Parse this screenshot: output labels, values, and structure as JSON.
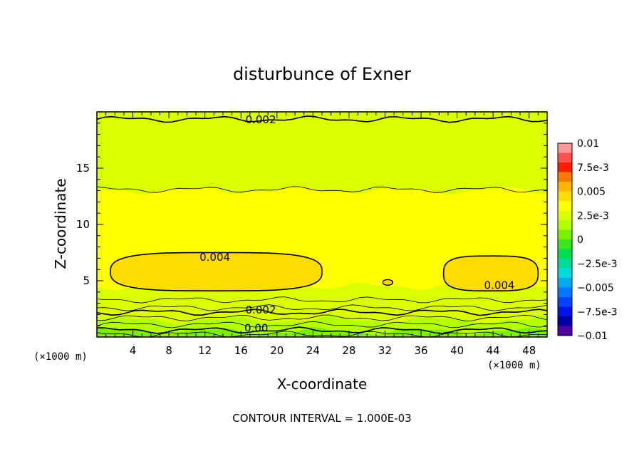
{
  "chart_data": {
    "type": "heatmap",
    "title": "disturbunce of Exner",
    "xlabel": "X-coordinate",
    "ylabel": "Z-coordinate",
    "x_unit_left": "(×1000 m)",
    "x_unit_right": "(×1000 m)",
    "footer": "CONTOUR INTERVAL = 1.000E-03",
    "xlim": [
      0,
      50
    ],
    "ylim": [
      0,
      20
    ],
    "x_ticks": [
      "4",
      "8",
      "12",
      "16",
      "20",
      "24",
      "28",
      "32",
      "36",
      "40",
      "44",
      "48"
    ],
    "y_ticks": [
      "5",
      "10",
      "15"
    ],
    "contour_interval": 0.001,
    "contour_labels": [
      {
        "text": "0.002",
        "x": 18.2,
        "z": 19.3
      },
      {
        "text": "0.004",
        "x": 13.1,
        "z": 7.1
      },
      {
        "text": "0.004",
        "x": 44.7,
        "z": 4.6
      },
      {
        "text": "0.002",
        "x": 18.2,
        "z": 2.4
      },
      {
        "text": "0.00",
        "x": 17.7,
        "z": 0.8
      }
    ],
    "bands": [
      {
        "z_range": [
          0,
          0.5
        ],
        "value_range": [
          0,
          0.001
        ]
      },
      {
        "z_range": [
          0.5,
          1.5
        ],
        "value_range": [
          0.001,
          0.002
        ]
      },
      {
        "z_range": [
          1.5,
          3.0
        ],
        "value_range": [
          0.002,
          0.0025
        ]
      },
      {
        "z_range": [
          3.0,
          4.5
        ],
        "value_range": [
          0.0025,
          0.0035
        ]
      },
      {
        "z_range": [
          4.5,
          9.5
        ],
        "value_range": [
          0.0035,
          0.004
        ]
      },
      {
        "z_range": [
          9.5,
          13
        ],
        "value_range": [
          0.003,
          0.0035
        ]
      },
      {
        "z_range": [
          13,
          18.5
        ],
        "value_range": [
          0.0025,
          0.003
        ]
      },
      {
        "z_range": [
          18.5,
          20
        ],
        "value_range": [
          0.002,
          0.0025
        ]
      }
    ],
    "maxima": [
      {
        "x_range": [
          1.5,
          25
        ],
        "z_range": [
          4.1,
          7.5
        ],
        "value": ">0.004"
      },
      {
        "x_range": [
          38.5,
          49
        ],
        "z_range": [
          4.1,
          7.2
        ],
        "value": ">0.004"
      }
    ],
    "colorbar": {
      "ticks": [
        "0.01",
        "7.5e-3",
        "0.005",
        "2.5e-3",
        "0",
        "−2.5e-3",
        "−0.005",
        "−7.5e-3",
        "−0.01"
      ],
      "colors": [
        "#ff9999",
        "#ff5050",
        "#ff1e00",
        "#ff7800",
        "#ffb400",
        "#ffdc00",
        "#ffff00",
        "#dcff00",
        "#b4ff00",
        "#78f000",
        "#3ce61e",
        "#00dc50",
        "#00dc96",
        "#00dcdc",
        "#00aaf0",
        "#0078ff",
        "#0046ff",
        "#0014e6",
        "#0000aa",
        "#5000a0"
      ]
    }
  }
}
